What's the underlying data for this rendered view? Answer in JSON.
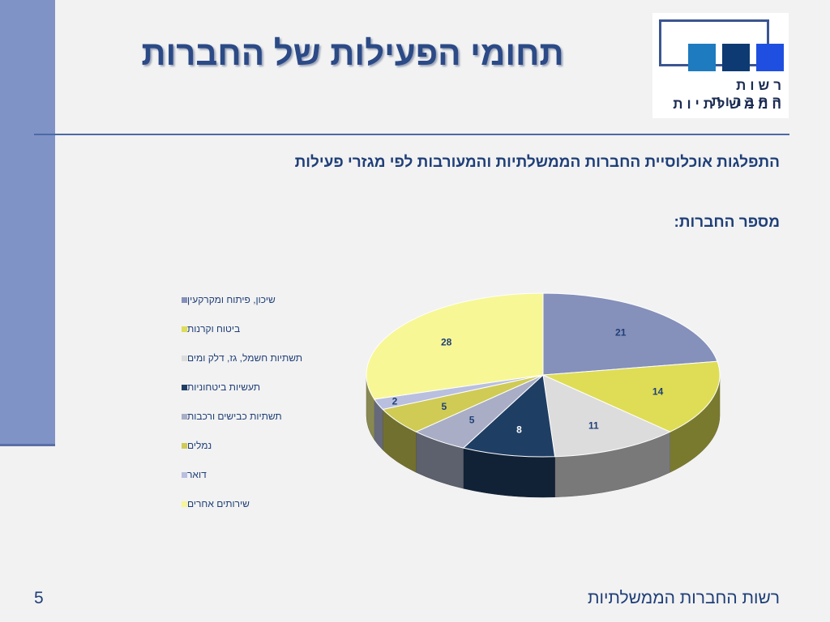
{
  "slide": {
    "title": "תחומי הפעילות של החברות",
    "subtitle": "התפלגות אוכלוסיית החברות הממשלתיות והמעורבות לפי מגזרי פעילות",
    "chart_caption": "מספר החברות:",
    "footer": "רשות החברות הממשלתיות",
    "page_number": "5"
  },
  "logo": {
    "line1": "רשות החברות",
    "line2": "הממשלתיות",
    "colors": [
      "#1e7bbf",
      "#0d3a73",
      "#1f4fe0"
    ]
  },
  "chart_data": {
    "type": "pie",
    "title": "",
    "style": "3d",
    "legend_position": "left",
    "labels": [
      "שיכון, פיתוח ומקרקעין",
      "ביטוח וקרנות",
      "תשתיות חשמל, גז, דלק ומים",
      "תעשיות ביטחוניות",
      "תשתיות כבישים ורכבות",
      "נמלים",
      "דואר",
      "שירותים אחרים"
    ],
    "values": [
      21,
      14,
      11,
      8,
      5,
      5,
      2,
      28
    ],
    "colors": [
      "#8590bb",
      "#dedd55",
      "#dcdcdc",
      "#1f3e64",
      "#a9aec6",
      "#cfcb55",
      "#b9bfdf",
      "#f7f796"
    ]
  }
}
